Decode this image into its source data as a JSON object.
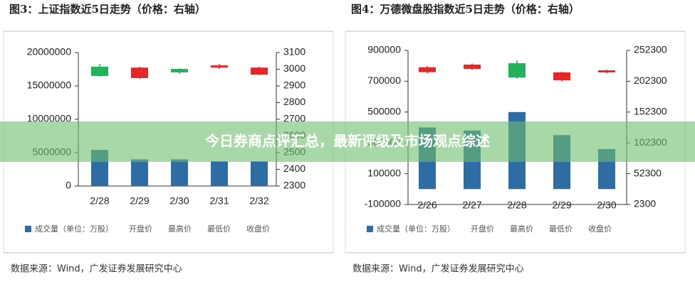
{
  "chart_data": [
    {
      "type": "candlestick",
      "title": "图3：上证指数近5日走势（价格：右轴）",
      "categories": [
        "2/28",
        "2/29",
        "2/30",
        "2/31",
        "2/32"
      ],
      "series": [
        {
          "name": "成交量（单位：万股）",
          "color": "#2e6da4",
          "values": [
            5400000,
            4000000,
            4000000,
            3700000,
            3700000
          ]
        },
        {
          "name": "开盘价",
          "axis": "y2",
          "values": [
            3015,
            2947,
            3002,
            3010,
            2968
          ]
        },
        {
          "name": "最高价",
          "axis": "y2",
          "values": [
            3032,
            3015,
            3006,
            3032,
            3015
          ]
        },
        {
          "name": "最低价",
          "axis": "y2",
          "values": [
            2955,
            2943,
            2972,
            3002,
            2964
          ]
        },
        {
          "name": "收盘价",
          "axis": "y2",
          "values": [
            2960,
            3010,
            2981,
            3023,
            3010
          ]
        }
      ],
      "up_color": "#e8262a",
      "down_color": "#21b25a",
      "ylim": [
        0,
        20000000
      ],
      "yticks": [
        0,
        5000000,
        10000000,
        15000000,
        20000000
      ],
      "y2lim": [
        2300,
        3100
      ],
      "y2ticks": [
        2300,
        2400,
        2500,
        2600,
        2700,
        2800,
        2900,
        3000,
        3100
      ],
      "source": "数据来源：Wind，广发证券发展研究中心"
    },
    {
      "type": "candlestick",
      "title": "图4：万德微盘股指数近5日走势（价格：右轴）",
      "categories": [
        "2/26",
        "2/27",
        "2/28",
        "2/29",
        "2/30"
      ],
      "series": [
        {
          "name": "成交量（单位：万股）",
          "color": "#2e6da4",
          "values": [
            400000,
            380000,
            500000,
            350000,
            260000
          ]
        },
        {
          "name": "开盘价",
          "axis": "y2",
          "values": [
            217000,
            222300,
            231500,
            203900,
            216600
          ]
        },
        {
          "name": "最高价",
          "axis": "y2",
          "values": [
            227000,
            231000,
            236200,
            218000,
            221000
          ]
        },
        {
          "name": "最低价",
          "axis": "y2",
          "values": [
            215000,
            221000,
            206200,
            202000,
            215000
          ]
        },
        {
          "name": "收盘价",
          "axis": "y2",
          "values": [
            225000,
            229300,
            208500,
            216600,
            220000
          ]
        }
      ],
      "up_color": "#e8262a",
      "down_color": "#21b25a",
      "ylim": [
        -100000,
        900000
      ],
      "yticks": [
        -100000,
        100000,
        300000,
        500000,
        700000,
        900000
      ],
      "y2lim": [
        2300,
        252300
      ],
      "y2ticks": [
        2300,
        52300,
        102300,
        152300,
        202300,
        252300
      ],
      "source": "数据来源：Wind，广发证券发展研究中心"
    }
  ],
  "overlay_title": "今日券商点评汇总，最新评级及市场观点综述"
}
